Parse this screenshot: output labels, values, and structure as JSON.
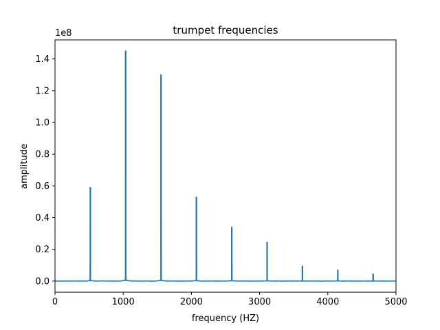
{
  "chart_data": {
    "type": "line",
    "title": "trumpet frequencies",
    "xlabel": "frequency (HZ)",
    "ylabel": "amplitude",
    "y_offset_text": "1e8",
    "xlim": [
      0,
      5000
    ],
    "ylim": [
      -0.07,
      1.52
    ],
    "y_scale_factor": 100000000,
    "grid": false,
    "x_ticks": [
      0,
      1000,
      2000,
      3000,
      4000,
      5000
    ],
    "x_tick_labels": [
      "0",
      "1000",
      "2000",
      "3000",
      "4000",
      "5000"
    ],
    "y_ticks": [
      0.0,
      0.2,
      0.4,
      0.6,
      0.8,
      1.0,
      1.2,
      1.4
    ],
    "y_tick_labels": [
      "0.0",
      "0.2",
      "0.4",
      "0.6",
      "0.8",
      "1.0",
      "1.2",
      "1.4"
    ],
    "series": [
      {
        "color": "#1f77b4",
        "peaks": [
          {
            "x": 518,
            "y": 0.59
          },
          {
            "x": 1036,
            "y": 1.45
          },
          {
            "x": 1555,
            "y": 1.3
          },
          {
            "x": 2073,
            "y": 0.53
          },
          {
            "x": 2592,
            "y": 0.34
          },
          {
            "x": 3110,
            "y": 0.245
          },
          {
            "x": 3628,
            "y": 0.095
          },
          {
            "x": 4147,
            "y": 0.07
          },
          {
            "x": 4665,
            "y": 0.045
          }
        ]
      }
    ]
  }
}
